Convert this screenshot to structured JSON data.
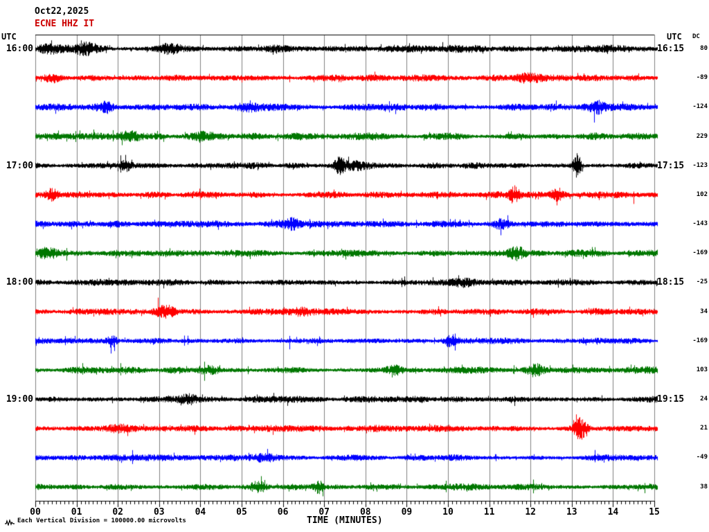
{
  "header": {
    "date": "Oct22,2025",
    "station": "ECNE HHZ IT"
  },
  "left_axis": {
    "label": "UTC"
  },
  "right_axis": {
    "label": "UTC",
    "dc_header": "DC"
  },
  "x_axis": {
    "title": "TIME (MINUTES)",
    "ticks": [
      "00",
      "01",
      "02",
      "03",
      "04",
      "05",
      "06",
      "07",
      "08",
      "09",
      "10",
      "11",
      "12",
      "13",
      "14",
      "15"
    ]
  },
  "footer": {
    "text": "Each Vertical Division = 100000.00 microvolts"
  },
  "colors": {
    "black": "#000000",
    "red": "#ff0000",
    "blue": "#0000ff",
    "green": "#007700",
    "grid": "#808080",
    "subtitle": "#cc0000"
  },
  "chart_data": {
    "type": "line",
    "title": "ECNE HHZ IT seismogram Oct22,2025",
    "x_range_minutes": [
      0,
      15
    ],
    "minutes_per_line": 15,
    "vertical_division_microvolts": 100000.0,
    "trace_color_cycle": [
      "black",
      "red",
      "blue",
      "green"
    ],
    "events_format": "[minute, amplitude_px, width_minutes]",
    "rows": [
      {
        "color": "black",
        "left_time": "16:00",
        "right_time": "16:15",
        "dc": 80,
        "base_amp": 3.5,
        "events": [
          [
            0.3,
            4,
            0.3
          ],
          [
            1.2,
            5,
            0.25
          ],
          [
            3.2,
            4,
            0.3
          ]
        ]
      },
      {
        "color": "red",
        "dc": -89,
        "base_amp": 3.2,
        "events": [
          [
            0.4,
            5,
            0.2
          ],
          [
            11.9,
            5,
            0.3
          ]
        ]
      },
      {
        "color": "blue",
        "dc": -124,
        "base_amp": 3.4,
        "events": [
          [
            1.7,
            6,
            0.2
          ],
          [
            5.1,
            4,
            0.3
          ],
          [
            13.6,
            5,
            0.2
          ]
        ]
      },
      {
        "color": "green",
        "dc": 229,
        "base_amp": 3.4,
        "events": [
          [
            2.3,
            5,
            0.25
          ],
          [
            4.0,
            4,
            0.3
          ]
        ]
      },
      {
        "color": "black",
        "left_time": "17:00",
        "right_time": "17:15",
        "dc": -123,
        "base_amp": 3.0,
        "events": [
          [
            2.2,
            5,
            0.15
          ],
          [
            7.37,
            11,
            0.12
          ],
          [
            7.8,
            4,
            0.5
          ],
          [
            13.12,
            15,
            0.1
          ]
        ]
      },
      {
        "color": "red",
        "dc": 102,
        "base_amp": 3.2,
        "events": [
          [
            0.4,
            7,
            0.15
          ],
          [
            11.6,
            10,
            0.12
          ],
          [
            12.65,
            7,
            0.15
          ]
        ]
      },
      {
        "color": "blue",
        "dc": -143,
        "base_amp": 3.0,
        "events": [
          [
            6.2,
            6,
            0.2
          ],
          [
            11.3,
            6,
            0.2
          ]
        ]
      },
      {
        "color": "green",
        "dc": -169,
        "base_amp": 3.4,
        "events": [
          [
            0.3,
            5,
            0.3
          ],
          [
            11.65,
            8,
            0.2
          ]
        ]
      },
      {
        "color": "black",
        "left_time": "18:00",
        "right_time": "18:15",
        "dc": -25,
        "base_amp": 3.0,
        "events": [
          [
            10.4,
            4,
            0.3
          ]
        ]
      },
      {
        "color": "red",
        "dc": 34,
        "base_amp": 3.2,
        "events": [
          [
            3.15,
            8,
            0.25
          ],
          [
            6.4,
            4,
            0.3
          ]
        ]
      },
      {
        "color": "blue",
        "dc": -169,
        "base_amp": 2.8,
        "events": [
          [
            1.85,
            7,
            0.12
          ],
          [
            10.05,
            6,
            0.15
          ]
        ]
      },
      {
        "color": "green",
        "dc": 103,
        "base_amp": 3.2,
        "events": [
          [
            4.2,
            5,
            0.3
          ],
          [
            8.7,
            5,
            0.2
          ],
          [
            12.1,
            6,
            0.2
          ]
        ]
      },
      {
        "color": "black",
        "left_time": "19:00",
        "right_time": "19:15",
        "dc": 24,
        "base_amp": 3.0,
        "events": [
          [
            3.7,
            4,
            0.2
          ]
        ]
      },
      {
        "color": "red",
        "dc": 21,
        "base_amp": 3.2,
        "events": [
          [
            2.0,
            4,
            0.3
          ],
          [
            13.2,
            12,
            0.15
          ]
        ]
      },
      {
        "color": "blue",
        "dc": -49,
        "base_amp": 3.0,
        "events": [
          [
            5.5,
            4,
            0.3
          ]
        ]
      },
      {
        "color": "green",
        "dc": 38,
        "base_amp": 3.0,
        "events": [
          [
            5.4,
            6,
            0.15
          ],
          [
            6.85,
            7,
            0.12
          ]
        ]
      }
    ]
  }
}
